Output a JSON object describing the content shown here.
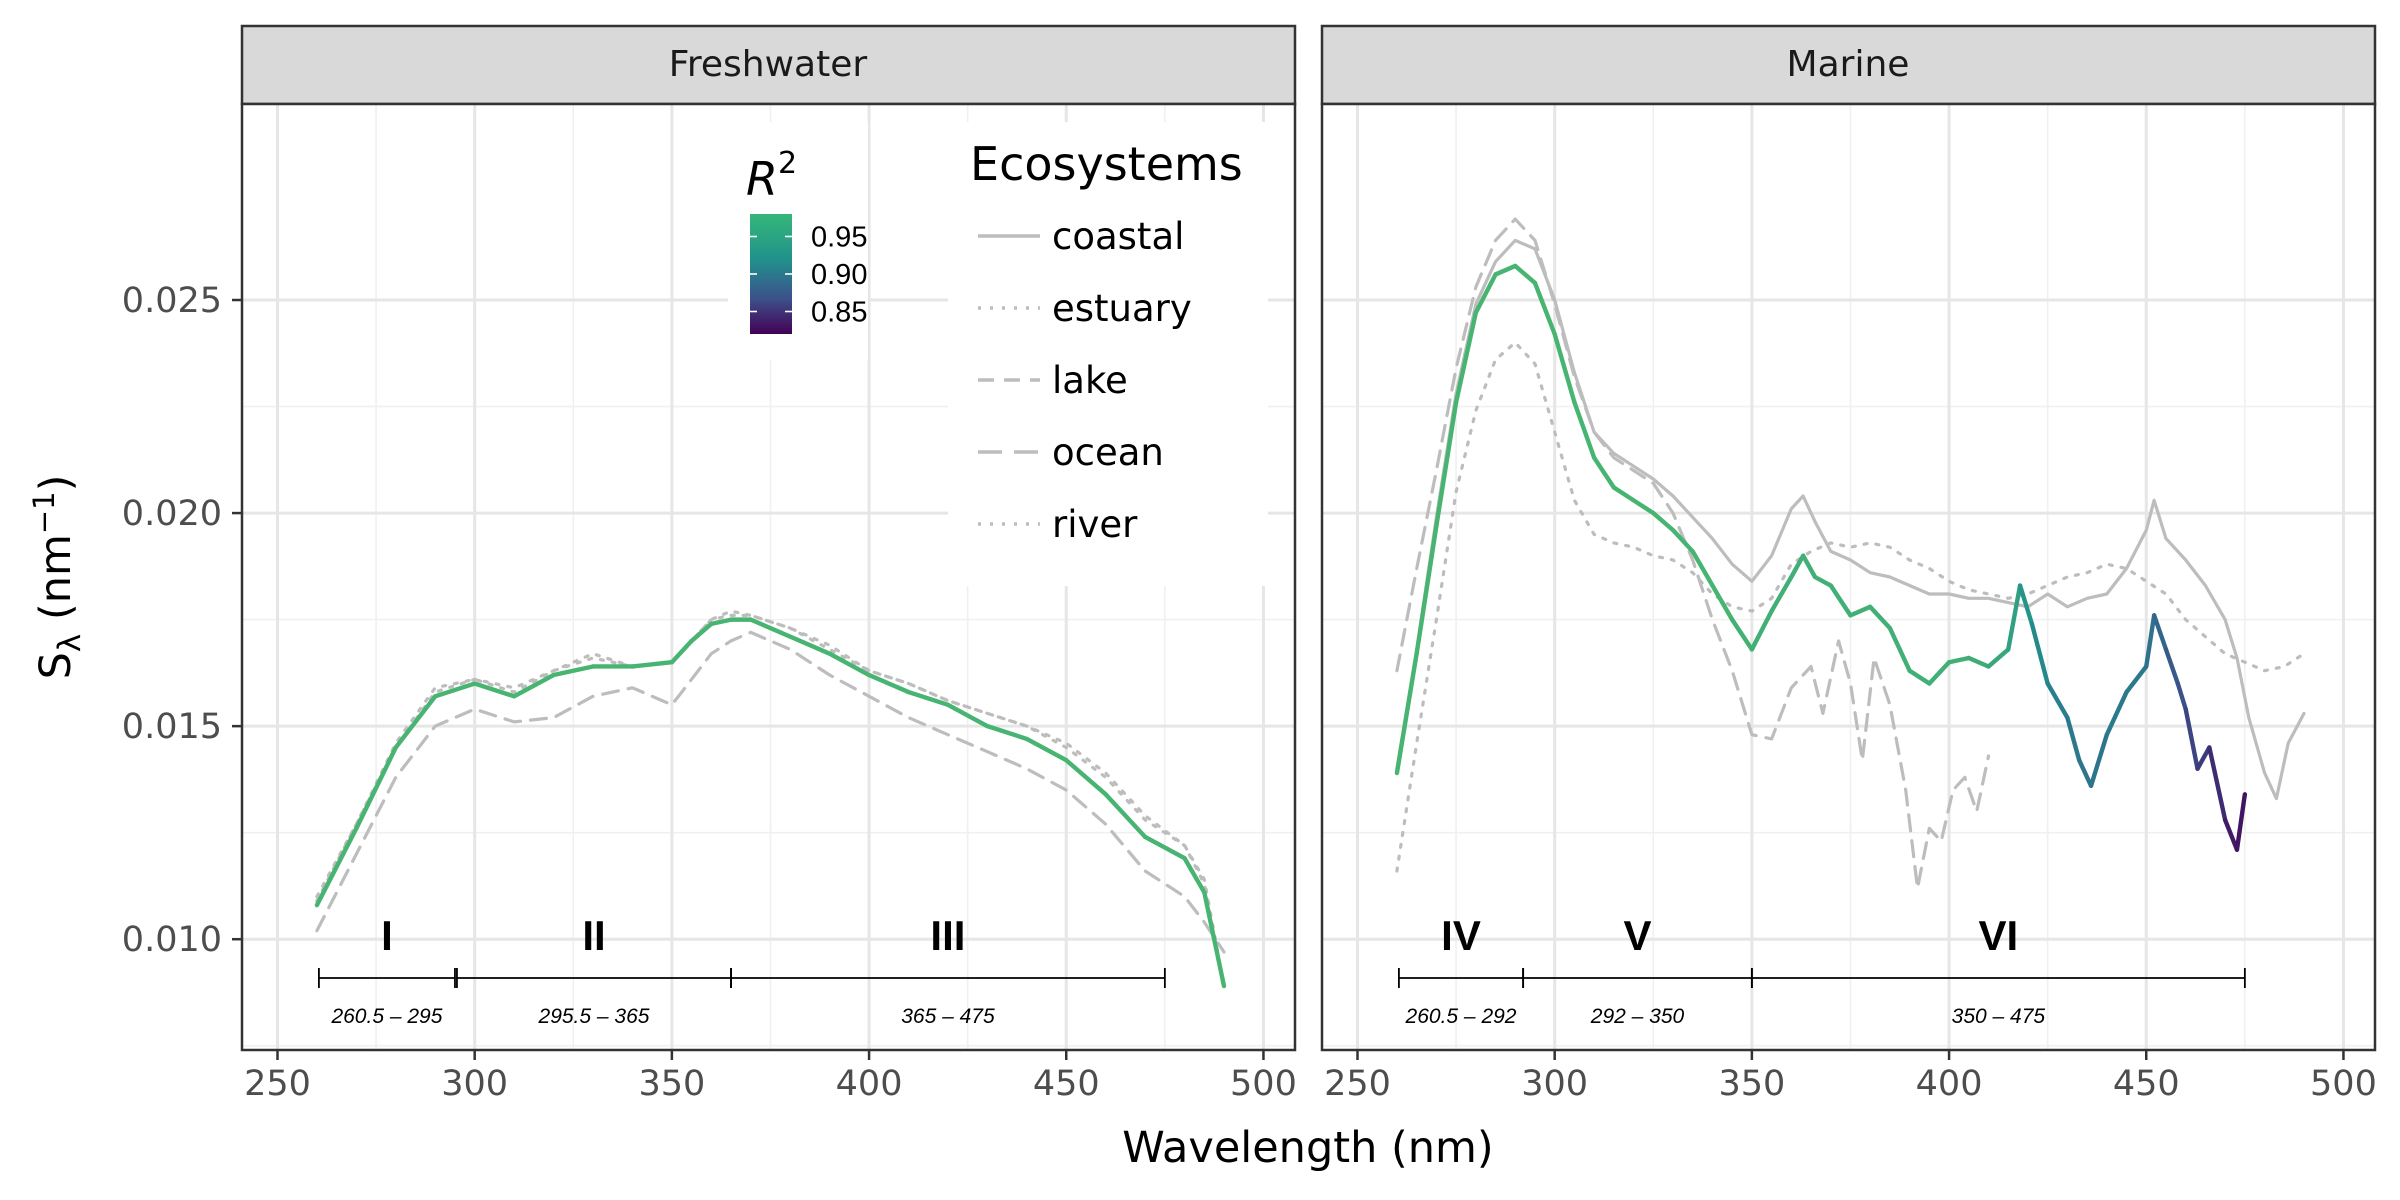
{
  "chart_data": {
    "type": "line",
    "xlabel": "Wavelength (nm)",
    "ylabel": "Sλ (nm⁻¹)",
    "xlim": [
      241,
      508
    ],
    "ylim": [
      0.0074,
      0.0296
    ],
    "x_ticks": [
      250,
      300,
      350,
      400,
      450,
      500
    ],
    "y_ticks": [
      0.01,
      0.015,
      0.02,
      0.025
    ],
    "y_tick_labels": [
      "0.010",
      "0.015",
      "0.020",
      "0.025"
    ],
    "grid": true,
    "legend_placement": "top-right of left panel",
    "legend": {
      "title": "Ecosystems",
      "entries": [
        {
          "label": "coastal",
          "linetype": "solid"
        },
        {
          "label": "estuary",
          "linetype": "dotted"
        },
        {
          "label": "lake",
          "linetype": "dashed"
        },
        {
          "label": "ocean",
          "linetype": "longdash"
        },
        {
          "label": "river",
          "linetype": "dotted"
        }
      ]
    },
    "colorbar": {
      "title": "R",
      "title_superscript": "2",
      "labels": [
        "0.95",
        "0.90",
        "0.85"
      ],
      "values": [
        0.95,
        0.9,
        0.85
      ],
      "range": [
        0.82,
        0.98
      ]
    },
    "colors": {
      "reference_lines": "#bdbdbd",
      "gradient": [
        "#440154",
        "#3b528b",
        "#21918c",
        "#5ec962"
      ]
    },
    "panels": [
      {
        "title": "Freshwater",
        "regions": [
          {
            "label": "I",
            "range": "260.5 – 295",
            "from": 260.5,
            "to": 295
          },
          {
            "label": "II",
            "range": "295.5 – 365",
            "from": 295.5,
            "to": 365
          },
          {
            "label": "III",
            "range": "365 – 475",
            "from": 365,
            "to": 475
          }
        ],
        "series": [
          {
            "name": "estuary",
            "linetype": "dotted",
            "color": "#bdbdbd",
            "x": [
              260,
              270,
              280,
              290,
              300,
              310,
              320,
              330,
              340,
              350,
              355,
              360,
              365,
              370,
              380,
              390,
              400,
              410,
              420,
              430,
              440,
              450,
              460,
              470,
              480,
              485,
              490
            ],
            "y": [
              0.011,
              0.0127,
              0.0145,
              0.0158,
              0.0161,
              0.0159,
              0.0163,
              0.0167,
              0.0164,
              0.0165,
              0.017,
              0.0175,
              0.0176,
              0.0176,
              0.0173,
              0.0168,
              0.0163,
              0.016,
              0.0156,
              0.0153,
              0.015,
              0.0145,
              0.0138,
              0.0128,
              0.0122,
              0.0113,
              0.0088
            ]
          },
          {
            "name": "lake",
            "linetype": "dashed",
            "color": "#bdbdbd",
            "x": [
              260,
              270,
              280,
              290,
              300,
              310,
              320,
              330,
              340,
              350,
              355,
              360,
              365,
              370,
              380,
              390,
              400,
              410,
              420,
              430,
              440,
              450,
              460,
              470,
              480,
              485,
              490
            ],
            "y": [
              0.0102,
              0.012,
              0.0138,
              0.015,
              0.0154,
              0.0151,
              0.0152,
              0.0157,
              0.0159,
              0.0155,
              0.0161,
              0.0167,
              0.017,
              0.0172,
              0.0168,
              0.0162,
              0.0157,
              0.0152,
              0.0148,
              0.0144,
              0.014,
              0.0135,
              0.0127,
              0.0116,
              0.011,
              0.0104,
              0.0097
            ]
          },
          {
            "name": "river",
            "linetype": "dotted",
            "color": "#bdbdbd",
            "x": [
              260,
              270,
              280,
              290,
              300,
              310,
              320,
              330,
              340,
              350,
              355,
              360,
              365,
              370,
              380,
              390,
              400,
              410,
              420,
              430,
              440,
              450,
              460,
              470,
              480,
              485,
              490
            ],
            "y": [
              0.0109,
              0.0127,
              0.0146,
              0.0159,
              0.0161,
              0.0158,
              0.0163,
              0.0166,
              0.0164,
              0.0165,
              0.017,
              0.0175,
              0.0177,
              0.0176,
              0.0173,
              0.0169,
              0.0163,
              0.016,
              0.0156,
              0.0153,
              0.015,
              0.0146,
              0.0139,
              0.0129,
              0.0122,
              0.0114,
              0.0089
            ]
          },
          {
            "name": "",
            "linetype": "solid",
            "colored_by": "R2",
            "x": [
              260,
              270,
              280,
              290,
              300,
              310,
              320,
              330,
              340,
              350,
              355,
              360,
              365,
              370,
              380,
              390,
              400,
              410,
              420,
              430,
              440,
              450,
              460,
              470,
              480,
              485,
              490
            ],
            "y": [
              0.0108,
              0.0126,
              0.0145,
              0.0157,
              0.016,
              0.0157,
              0.0162,
              0.0164,
              0.0164,
              0.0165,
              0.017,
              0.0174,
              0.0175,
              0.0175,
              0.0171,
              0.0167,
              0.0162,
              0.0158,
              0.0155,
              0.015,
              0.0147,
              0.0142,
              0.0134,
              0.0124,
              0.0119,
              0.0111,
              0.0089
            ],
            "r2": [
              0.96,
              0.96,
              0.96,
              0.96,
              0.96,
              0.96,
              0.96,
              0.96,
              0.96,
              0.96,
              0.96,
              0.96,
              0.96,
              0.96,
              0.96,
              0.96,
              0.96,
              0.96,
              0.96,
              0.96,
              0.96,
              0.96,
              0.96,
              0.96,
              0.96,
              0.96,
              0.96
            ]
          }
        ]
      },
      {
        "title": "Marine",
        "regions": [
          {
            "label": "IV",
            "range": "260.5 – 292",
            "from": 260.5,
            "to": 292
          },
          {
            "label": "V",
            "range": "292 – 350",
            "from": 292,
            "to": 350
          },
          {
            "label": "VI",
            "range": "350 – 475",
            "from": 350,
            "to": 475
          }
        ],
        "series": [
          {
            "name": "coastal",
            "linetype": "solid",
            "color": "#bdbdbd",
            "x": [
              260,
              265,
              270,
              275,
              280,
              285,
              290,
              295,
              300,
              305,
              310,
              315,
              320,
              325,
              330,
              335,
              340,
              345,
              350,
              355,
              360,
              363,
              366,
              370,
              375,
              380,
              385,
              390,
              395,
              400,
              405,
              410,
              415,
              420,
              425,
              430,
              435,
              440,
              445,
              450,
              452,
              455,
              460,
              465,
              470,
              473,
              476,
              480,
              483,
              486,
              490
            ],
            "y": [
              0.014,
              0.0168,
              0.0199,
              0.0228,
              0.0249,
              0.0259,
              0.0264,
              0.0262,
              0.025,
              0.0233,
              0.0219,
              0.0214,
              0.0211,
              0.0208,
              0.0204,
              0.0199,
              0.0194,
              0.0188,
              0.0184,
              0.019,
              0.0201,
              0.0204,
              0.0198,
              0.0191,
              0.0189,
              0.0186,
              0.0185,
              0.0183,
              0.0181,
              0.0181,
              0.018,
              0.018,
              0.0179,
              0.0178,
              0.0181,
              0.0178,
              0.018,
              0.0181,
              0.0187,
              0.0196,
              0.0203,
              0.0194,
              0.0189,
              0.0183,
              0.0175,
              0.0166,
              0.0152,
              0.0139,
              0.0133,
              0.0146,
              0.0153
            ]
          },
          {
            "name": "estuary",
            "linetype": "dotted",
            "color": "#bdbdbd",
            "x": [
              260,
              265,
              270,
              275,
              280,
              285,
              290,
              295,
              300,
              305,
              310,
              315,
              320,
              325,
              330,
              335,
              340,
              345,
              350,
              355,
              360,
              365,
              370,
              375,
              380,
              385,
              390,
              395,
              400,
              405,
              410,
              415,
              420,
              425,
              430,
              435,
              440,
              445,
              450,
              455,
              460,
              465,
              470,
              475,
              480,
              485,
              490
            ],
            "y": [
              0.0116,
              0.0146,
              0.0175,
              0.0205,
              0.0224,
              0.0236,
              0.024,
              0.0235,
              0.0219,
              0.0203,
              0.0195,
              0.0193,
              0.0192,
              0.019,
              0.0189,
              0.0186,
              0.0181,
              0.0178,
              0.0177,
              0.018,
              0.0188,
              0.0191,
              0.0193,
              0.0192,
              0.0193,
              0.0192,
              0.0189,
              0.0187,
              0.0184,
              0.0182,
              0.0181,
              0.018,
              0.0181,
              0.0183,
              0.0185,
              0.0186,
              0.0188,
              0.0187,
              0.0184,
              0.0181,
              0.0175,
              0.0171,
              0.0167,
              0.0165,
              0.0163,
              0.0164,
              0.0167
            ]
          },
          {
            "name": "ocean",
            "linetype": "dashed",
            "color": "#bdbdbd",
            "x": [
              260,
              265,
              270,
              275,
              280,
              285,
              290,
              295,
              300,
              305,
              310,
              315,
              320,
              325,
              330,
              335,
              340,
              345,
              350,
              355,
              360,
              365,
              368,
              372,
              375,
              378,
              381,
              385,
              389,
              392,
              395,
              398,
              401,
              404,
              407,
              410
            ],
            "y": [
              0.0163,
              0.0187,
              0.021,
              0.0234,
              0.0253,
              0.0264,
              0.0269,
              0.0264,
              0.0249,
              0.0232,
              0.0219,
              0.0213,
              0.021,
              0.0207,
              0.02,
              0.0189,
              0.0175,
              0.0163,
              0.0148,
              0.0147,
              0.0159,
              0.0164,
              0.0153,
              0.017,
              0.016,
              0.0142,
              0.0166,
              0.0155,
              0.0135,
              0.0112,
              0.0126,
              0.0123,
              0.0135,
              0.0138,
              0.013,
              0.0143
            ]
          },
          {
            "name": "",
            "linetype": "solid",
            "colored_by": "R2",
            "x": [
              260,
              265,
              270,
              275,
              280,
              285,
              290,
              295,
              300,
              305,
              310,
              315,
              320,
              325,
              330,
              335,
              340,
              345,
              350,
              355,
              360,
              363,
              366,
              370,
              375,
              380,
              385,
              390,
              395,
              400,
              405,
              410,
              415,
              418,
              421,
              425,
              430,
              433,
              436,
              440,
              445,
              450,
              452,
              455,
              458,
              460,
              463,
              466,
              470,
              473,
              475
            ],
            "y": [
              0.0139,
              0.0167,
              0.0197,
              0.0226,
              0.0247,
              0.0256,
              0.0258,
              0.0254,
              0.0242,
              0.0226,
              0.0213,
              0.0206,
              0.0203,
              0.02,
              0.0196,
              0.0191,
              0.0183,
              0.0175,
              0.0168,
              0.0177,
              0.0185,
              0.019,
              0.0185,
              0.0183,
              0.0176,
              0.0178,
              0.0173,
              0.0163,
              0.016,
              0.0165,
              0.0166,
              0.0164,
              0.0168,
              0.0183,
              0.0174,
              0.016,
              0.0152,
              0.0142,
              0.0136,
              0.0148,
              0.0158,
              0.0164,
              0.0176,
              0.0168,
              0.016,
              0.0154,
              0.014,
              0.0145,
              0.0128,
              0.0121,
              0.0134
            ],
            "r2": [
              0.96,
              0.96,
              0.96,
              0.96,
              0.96,
              0.96,
              0.96,
              0.96,
              0.96,
              0.96,
              0.96,
              0.96,
              0.96,
              0.96,
              0.96,
              0.96,
              0.96,
              0.96,
              0.955,
              0.955,
              0.955,
              0.955,
              0.955,
              0.955,
              0.955,
              0.955,
              0.955,
              0.955,
              0.955,
              0.955,
              0.955,
              0.95,
              0.945,
              0.935,
              0.925,
              0.915,
              0.91,
              0.905,
              0.9,
              0.905,
              0.91,
              0.905,
              0.895,
              0.885,
              0.875,
              0.87,
              0.86,
              0.855,
              0.84,
              0.835,
              0.83
            ]
          }
        ]
      }
    ]
  }
}
